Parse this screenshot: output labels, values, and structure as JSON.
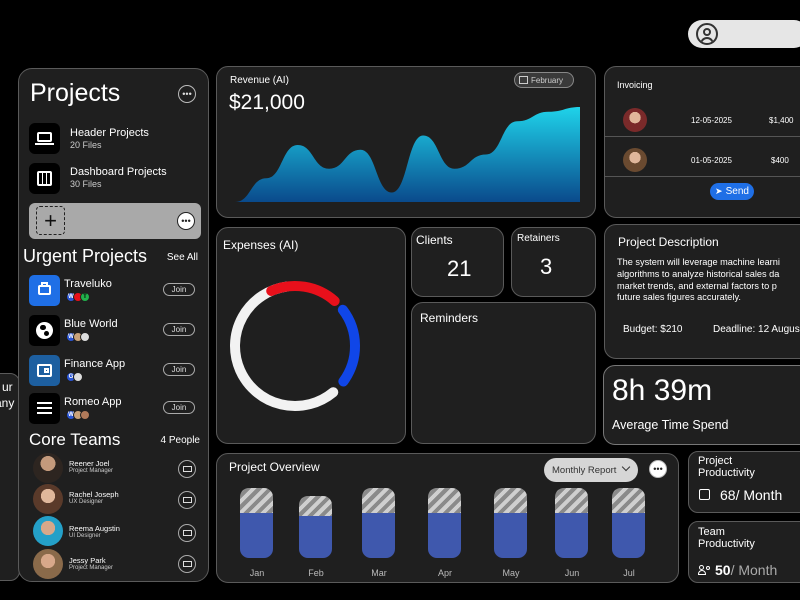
{
  "colors": {
    "accent_blue": "#1f6fe6",
    "chart_blue": "#3f58ad",
    "red": "#e8101b",
    "donut_blue": "#1046e8"
  },
  "projects": {
    "title": "Projects",
    "items": [
      {
        "name": "Header Projects",
        "count": "20 Files",
        "icon": "laptop-icon"
      },
      {
        "name": "Dashboard Projects",
        "count": "30 Files",
        "icon": "dashboard-icon"
      }
    ]
  },
  "urgent": {
    "title": "Urgent Projects",
    "see_all": "See All",
    "join_label": "Join",
    "items": [
      {
        "name": "Traveluko",
        "icon": "briefcase-icon"
      },
      {
        "name": "Blue World",
        "icon": "globe-icon"
      },
      {
        "name": "Finance App",
        "icon": "wallet-icon"
      },
      {
        "name": "Romeo App",
        "icon": "list-icon"
      }
    ]
  },
  "core_teams": {
    "title": "Core Teams",
    "count": "4 People",
    "members": [
      {
        "name": "Reener Joel",
        "role": "Project Manager"
      },
      {
        "name": "Rachel Joseph",
        "role": "UX Designer"
      },
      {
        "name": "Reema Augstin",
        "role": "UI Designer"
      },
      {
        "name": "Jessy Park",
        "role": "Project Manager"
      }
    ]
  },
  "left_peek": {
    "line1": "ur",
    "line2": "any"
  },
  "revenue": {
    "title": "Revenue (AI)",
    "value": "$21,000",
    "month": "February",
    "curve": [
      0.0,
      0.25,
      0.6,
      0.35,
      0.55,
      0.1,
      0.7,
      0.35,
      0.5,
      0.85,
      0.95,
      1.0
    ]
  },
  "invoicing": {
    "title": "Invoicing",
    "rows": [
      {
        "date": "12-05-2025",
        "amount": "$1,400"
      },
      {
        "date": "01-05-2025",
        "amount": "$400"
      }
    ],
    "send_label": "Send"
  },
  "expenses": {
    "title": "Expenses  (AI)",
    "red_fraction": 0.2,
    "blue_fraction": 0.17,
    "white_fraction": 0.4
  },
  "clients": {
    "label": "Clients",
    "value": "21"
  },
  "retainers": {
    "label": "Retainers",
    "value": "3"
  },
  "reminders": {
    "label": "Reminders"
  },
  "project_description": {
    "title": "Project Description",
    "lines": [
      "The system will leverage machine learni",
      "algorithms to analyze historical sales da",
      "market trends, and external factors to p",
      "future sales figures accurately."
    ],
    "budget": "Budget: $210",
    "deadline": "Deadline: 12 Augus"
  },
  "time_spend": {
    "value": "8h 39m",
    "label": "Average Time Spend"
  },
  "project_overview": {
    "title": "Project Overview",
    "filter": "Monthly Report"
  },
  "chart_data": {
    "type": "bar",
    "categories": [
      "Jan",
      "Feb",
      "Mar",
      "Apr",
      "May",
      "Jun",
      "Jul"
    ],
    "series": [
      {
        "values": [
          0.65,
          0.6,
          0.65,
          0.65,
          0.65,
          0.65,
          0.65
        ]
      },
      {
        "values": [
          1.0,
          0.88,
          1.0,
          1.0,
          1.0,
          1.0,
          1.0
        ]
      }
    ],
    "ylim": [
      0,
      1
    ]
  },
  "project_productivity": {
    "title": "Project\nProductivity",
    "line1": "Project",
    "line2": "Productivity",
    "value": "68/ Month"
  },
  "team_productivity": {
    "line1": "Team",
    "line2": "Productivity",
    "value_num": "50",
    "value_unit": "/ Month"
  }
}
